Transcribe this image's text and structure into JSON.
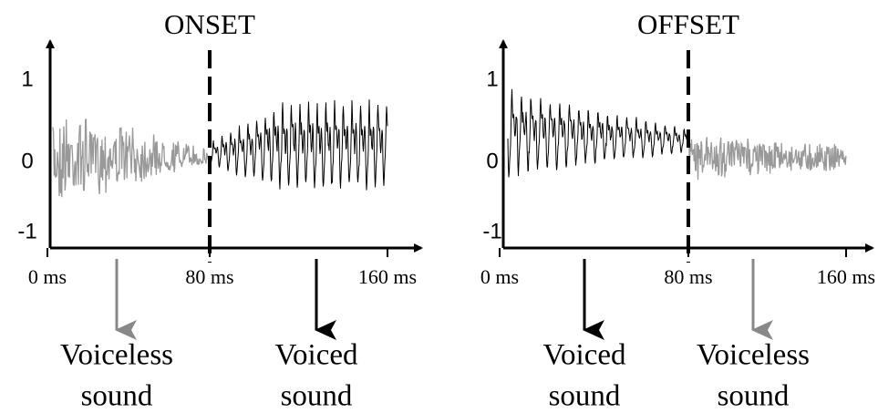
{
  "panels": [
    {
      "title": "ONSET",
      "y_labels": [
        "1",
        "0",
        "-1"
      ],
      "x_labels": [
        "0 ms",
        "80 ms",
        "160 ms"
      ],
      "captions": [
        {
          "lines": [
            "Voiceless",
            "sound"
          ]
        },
        {
          "lines": [
            "Voiced",
            "sound"
          ]
        }
      ]
    },
    {
      "title": "OFFSET",
      "y_labels": [
        "1",
        "0",
        "-1"
      ],
      "x_labels": [
        "0 ms",
        "80 ms",
        "160 ms"
      ],
      "captions": [
        {
          "lines": [
            "Voiced",
            "sound"
          ]
        },
        {
          "lines": [
            "Voiceless",
            "sound"
          ]
        }
      ]
    }
  ]
}
